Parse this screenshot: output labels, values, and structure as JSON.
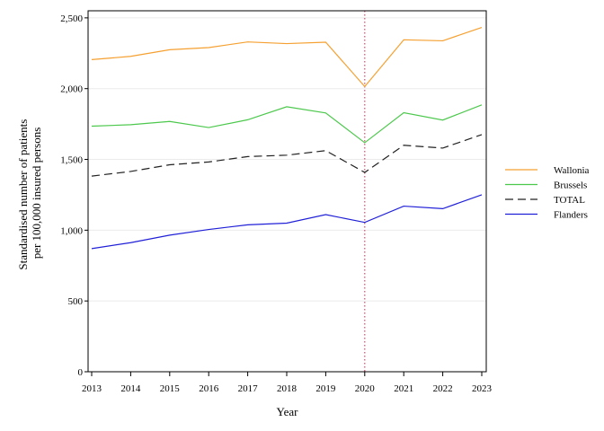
{
  "chart_data": {
    "type": "line",
    "title": "",
    "xlabel": "Year",
    "ylabel_lines": [
      "Standardised number of patients",
      "per 100,000 insured persons"
    ],
    "x": [
      2013,
      2014,
      2015,
      2016,
      2017,
      2018,
      2019,
      2020,
      2021,
      2022,
      2023
    ],
    "x_tick_labels": [
      "2013",
      "2014",
      "2015",
      "2016",
      "2017",
      "2018",
      "2019",
      "2020",
      "2021",
      "2022",
      "2023"
    ],
    "ylim": [
      0,
      2550
    ],
    "y_ticks": [
      0,
      500,
      1000,
      1500,
      2000,
      2500
    ],
    "y_tick_labels": [
      "0",
      "500",
      "1,000",
      "1,500",
      "2,000",
      "2,500"
    ],
    "grid": "horizontal",
    "reference_line": {
      "x": 2020,
      "color": "#d9466a",
      "style": "dotted"
    },
    "legend_position": "right",
    "series": [
      {
        "name": "Wallonia",
        "color": "#f5a030",
        "dash": "solid",
        "values": [
          2205,
          2228,
          2275,
          2290,
          2330,
          2318,
          2328,
          2015,
          2345,
          2338,
          2432
        ]
      },
      {
        "name": "Brussels",
        "color": "#4cc84c",
        "dash": "solid",
        "values": [
          1735,
          1745,
          1768,
          1725,
          1780,
          1872,
          1828,
          1618,
          1830,
          1778,
          1885
        ]
      },
      {
        "name": "TOTAL",
        "color": "#222222",
        "dash": "dashed",
        "values": [
          1382,
          1415,
          1462,
          1482,
          1520,
          1530,
          1562,
          1408,
          1600,
          1580,
          1675
        ]
      },
      {
        "name": "Flanders",
        "color": "#2020d8",
        "dash": "solid",
        "values": [
          870,
          912,
          965,
          1005,
          1038,
          1050,
          1110,
          1055,
          1170,
          1152,
          1250
        ]
      }
    ]
  }
}
